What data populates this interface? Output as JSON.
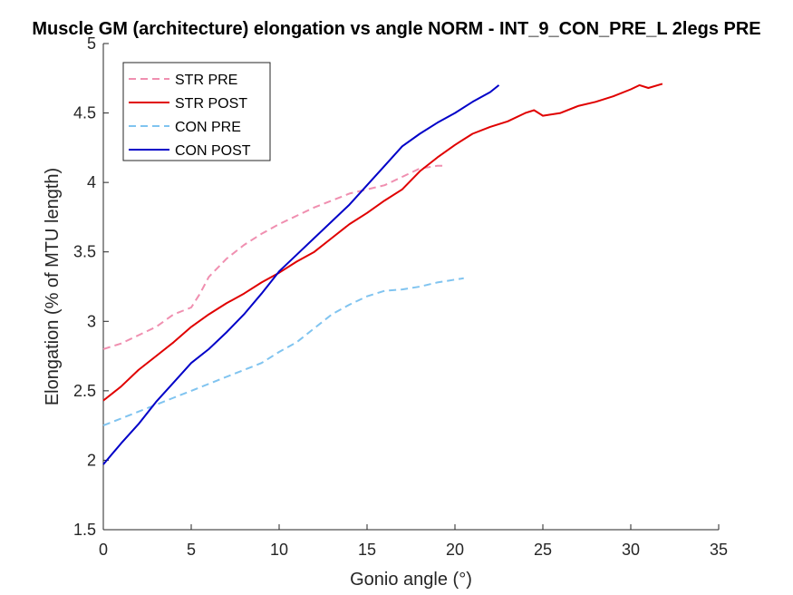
{
  "chart_data": {
    "type": "line",
    "title": "Muscle GM (architecture) elongation vs angle NORM - INT_9_CON_PRE_L 2legs PRE",
    "xlabel": "Gonio angle (°)",
    "ylabel": "Elongation (% of MTU length)",
    "xlim": [
      0,
      35
    ],
    "ylim": [
      1.5,
      5
    ],
    "xticks": [
      "0",
      "5",
      "10",
      "15",
      "20",
      "25",
      "30",
      "35"
    ],
    "yticks": [
      "1.5",
      "2",
      "2.5",
      "3",
      "3.5",
      "4",
      "4.5",
      "5"
    ],
    "grid": false,
    "legend_position": "top-left",
    "series": [
      {
        "name": "STR PRE",
        "color": "#f08fb0",
        "style": "dashed",
        "x": [
          0,
          1,
          2,
          3,
          4,
          5,
          5.5,
          6,
          7,
          8,
          9,
          10,
          11,
          12,
          13,
          14,
          15,
          16,
          17,
          18,
          19,
          19.5
        ],
        "y": [
          2.8,
          2.84,
          2.9,
          2.96,
          3.05,
          3.1,
          3.2,
          3.32,
          3.45,
          3.55,
          3.63,
          3.7,
          3.76,
          3.82,
          3.87,
          3.92,
          3.95,
          3.98,
          4.04,
          4.1,
          4.12,
          4.12
        ]
      },
      {
        "name": "STR POST",
        "color": "#e00000",
        "style": "solid",
        "x": [
          0,
          1,
          2,
          3,
          4,
          5,
          6,
          7,
          8,
          9,
          10,
          11,
          12,
          13,
          14,
          15,
          16,
          17,
          18,
          19,
          20,
          21,
          22,
          23,
          24,
          24.5,
          25,
          26,
          27,
          28,
          29,
          30,
          30.5,
          31,
          31.8
        ],
        "y": [
          2.43,
          2.53,
          2.65,
          2.75,
          2.85,
          2.96,
          3.05,
          3.13,
          3.2,
          3.28,
          3.35,
          3.43,
          3.5,
          3.6,
          3.7,
          3.78,
          3.87,
          3.95,
          4.08,
          4.18,
          4.27,
          4.35,
          4.4,
          4.44,
          4.5,
          4.52,
          4.48,
          4.5,
          4.55,
          4.58,
          4.62,
          4.67,
          4.7,
          4.68,
          4.71
        ]
      },
      {
        "name": "CON PRE",
        "color": "#80c4f0",
        "style": "dashed",
        "x": [
          0,
          1,
          2,
          3,
          4,
          5,
          6,
          7,
          8,
          9,
          10,
          11,
          12,
          13,
          14,
          15,
          16,
          17,
          18,
          19,
          20,
          20.5
        ],
        "y": [
          2.25,
          2.3,
          2.35,
          2.4,
          2.45,
          2.5,
          2.55,
          2.6,
          2.65,
          2.7,
          2.78,
          2.85,
          2.95,
          3.05,
          3.12,
          3.18,
          3.22,
          3.23,
          3.25,
          3.28,
          3.3,
          3.31
        ]
      },
      {
        "name": "CON POST",
        "color": "#0000c8",
        "style": "solid",
        "x": [
          0,
          1,
          2,
          3,
          4,
          5,
          6,
          7,
          8,
          9,
          10,
          11,
          12,
          13,
          14,
          15,
          16,
          17,
          18,
          19,
          20,
          21,
          22,
          22.5
        ],
        "y": [
          1.97,
          2.12,
          2.26,
          2.42,
          2.56,
          2.7,
          2.8,
          2.92,
          3.05,
          3.2,
          3.36,
          3.48,
          3.6,
          3.72,
          3.84,
          3.98,
          4.12,
          4.26,
          4.35,
          4.43,
          4.5,
          4.58,
          4.65,
          4.7
        ]
      }
    ]
  }
}
